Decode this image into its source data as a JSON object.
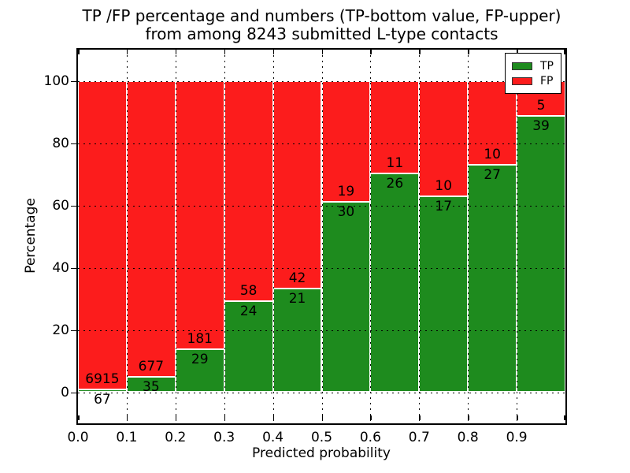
{
  "title": {
    "line1": "TP /FP percentage and numbers (TP-bottom value, FP-upper)",
    "line2": "from among 8243 submitted L-type contacts"
  },
  "axes": {
    "xlabel": "Predicted probability",
    "ylabel": "Percentage",
    "x_tick_labels": [
      "0.0",
      "0.1",
      "0.2",
      "0.3",
      "0.4",
      "0.5",
      "0.6",
      "0.7",
      "0.8",
      "0.9"
    ],
    "y_tick_labels": [
      "0",
      "20",
      "40",
      "60",
      "80",
      "100"
    ],
    "y_tick_values": [
      0,
      20,
      40,
      60,
      80,
      100
    ]
  },
  "legend": {
    "position": "upper right",
    "entries": [
      {
        "label": "TP",
        "color": "#1e8b1e"
      },
      {
        "label": "FP",
        "color": "#fc1c1c"
      }
    ]
  },
  "colors": {
    "tp": "#1e8b1e",
    "fp": "#fc1c1c",
    "grid": "#000000",
    "spine": "#000000",
    "background": "#ffffff"
  },
  "chart_data": {
    "type": "bar",
    "stacked": true,
    "normalized_to_percent": true,
    "title": "TP /FP percentage and numbers (TP-bottom value, FP-upper) from among 8243 submitted L-type contacts",
    "xlabel": "Predicted probability",
    "ylabel": "Percentage",
    "xlim": [
      0,
      1
    ],
    "ylim": [
      -10,
      110
    ],
    "grid": true,
    "legend_position": "upper right",
    "bin_start": [
      0.0,
      0.1,
      0.2,
      0.3,
      0.4,
      0.5,
      0.6,
      0.7,
      0.8,
      0.9
    ],
    "bin_width": 0.1,
    "series": [
      {
        "name": "TP",
        "color": "#1e8b1e",
        "counts": [
          67,
          35,
          29,
          24,
          21,
          30,
          26,
          17,
          27,
          39
        ]
      },
      {
        "name": "FP",
        "color": "#fc1c1c",
        "counts": [
          6915,
          677,
          181,
          58,
          42,
          19,
          11,
          10,
          10,
          5
        ]
      }
    ],
    "tp_percent": [
      0.96,
      4.92,
      13.81,
      29.27,
      33.33,
      61.22,
      70.27,
      62.96,
      72.97,
      88.64
    ],
    "total_contacts": 8243
  }
}
